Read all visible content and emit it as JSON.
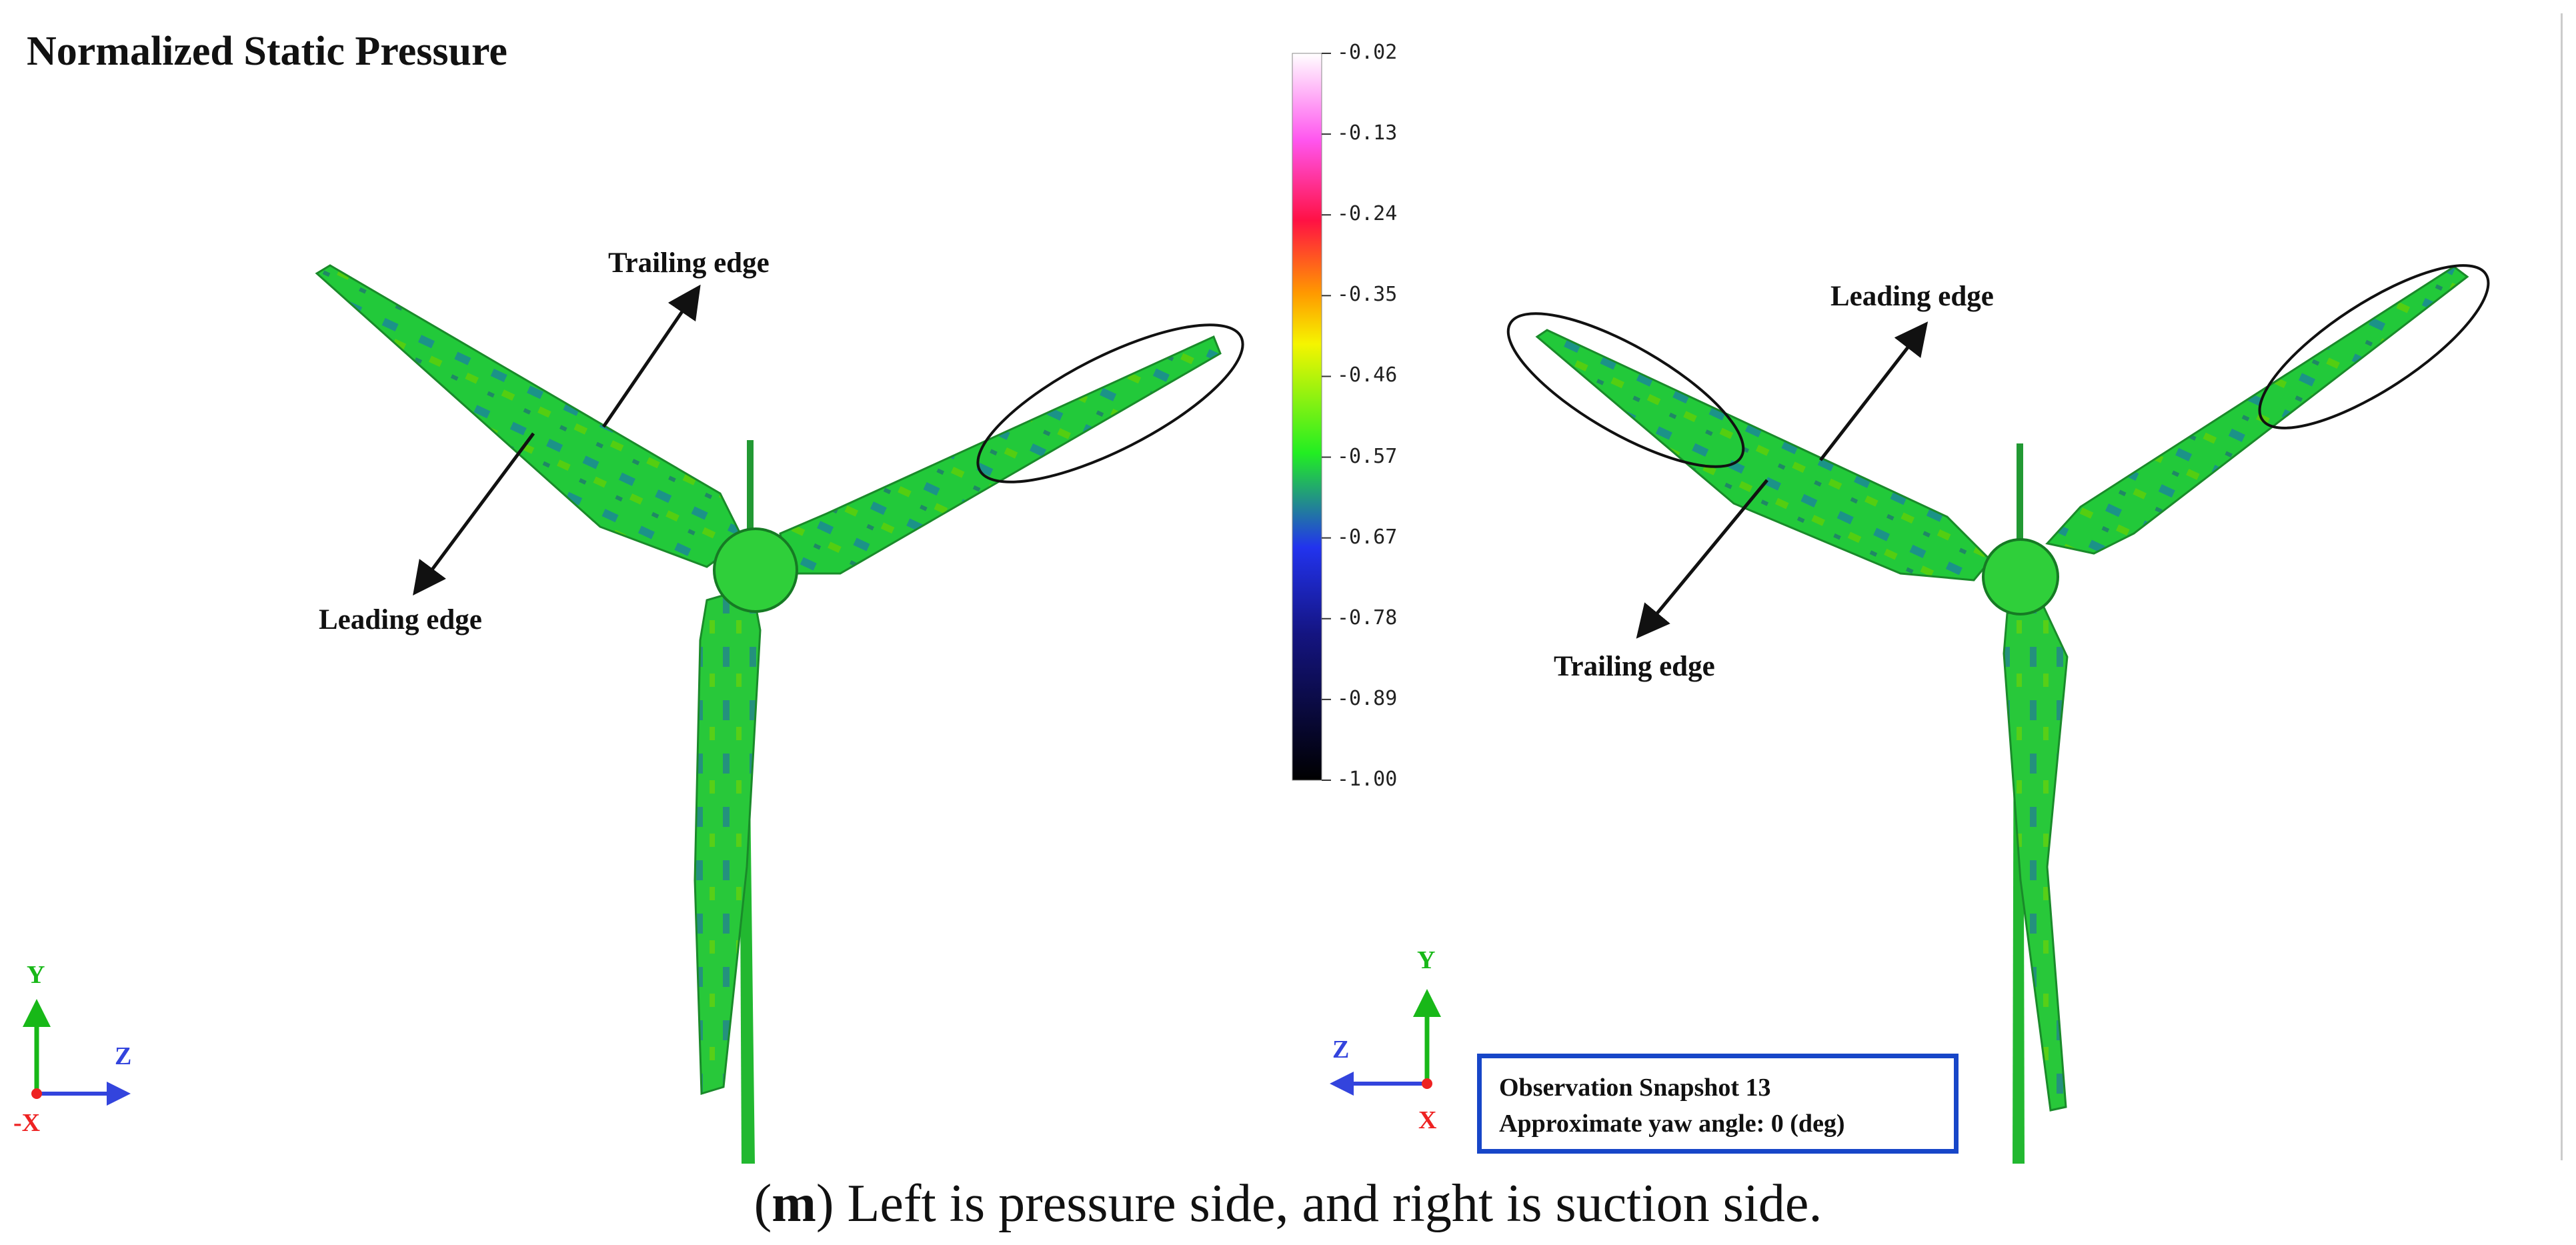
{
  "title": "Normalized Static Pressure",
  "annotations": {
    "left_trailing": "Trailing edge",
    "left_leading": "Leading edge",
    "right_leading": "Leading edge",
    "right_trailing": "Trailing edge"
  },
  "colorbar": {
    "ticks": [
      "-0.02",
      "-0.13",
      "-0.24",
      "-0.35",
      "-0.46",
      "-0.57",
      "-0.67",
      "-0.78",
      "-0.89",
      "-1.00"
    ],
    "colors": [
      "#ffffff",
      "#ff22dd",
      "#ff1133",
      "#ff9900",
      "#f7f700",
      "#22ee22",
      "#2222dd",
      "#15158f",
      "#050505"
    ]
  },
  "axes_left": {
    "y": "Y",
    "z": "Z",
    "x": "-X"
  },
  "axes_right": {
    "y": "Y",
    "z": "Z",
    "x": "X"
  },
  "snapshot": {
    "line1": "Observation Snapshot 13",
    "line2": "Approximate yaw angle: 0 (deg)"
  },
  "caption": {
    "letter": "m",
    "open": "(",
    "rest": ") Left is pressure side, and right is suction side."
  }
}
